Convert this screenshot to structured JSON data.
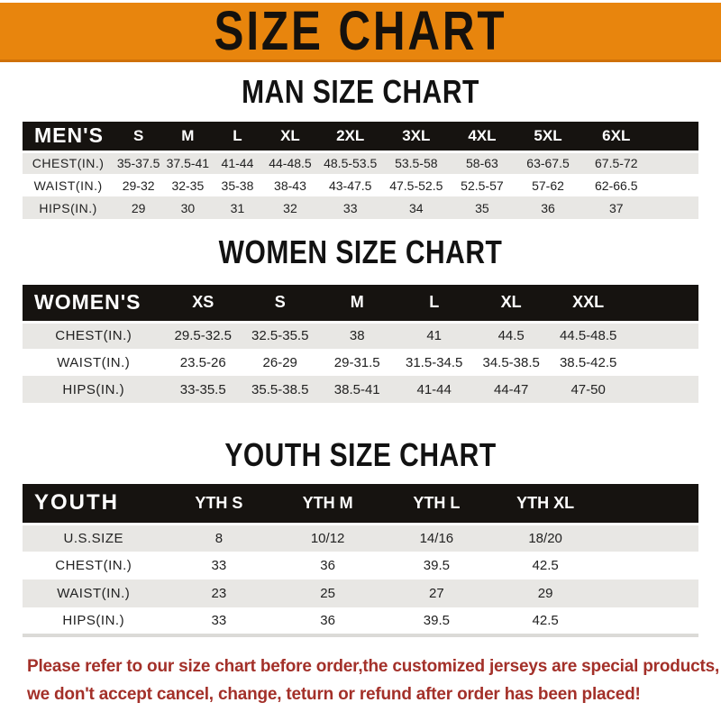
{
  "banner": {
    "title": "SIZE CHART",
    "bg_color": "#E8850D",
    "text_color": "#15110d"
  },
  "sections": [
    {
      "heading": "MAN SIZE CHART",
      "header_label": "MEN'S",
      "columns": [
        "S",
        "M",
        "L",
        "XL",
        "2XL",
        "3XL",
        "4XL",
        "5XL",
        "6XL"
      ],
      "rows": [
        {
          "label": "CHEST(IN.)",
          "values": [
            "35-37.5",
            "37.5-41",
            "41-44",
            "44-48.5",
            "48.5-53.5",
            "53.5-58",
            "58-63",
            "63-67.5",
            "67.5-72"
          ]
        },
        {
          "label": "WAIST(IN.)",
          "values": [
            "29-32",
            "32-35",
            "35-38",
            "38-43",
            "43-47.5",
            "47.5-52.5",
            "52.5-57",
            "57-62",
            "62-66.5"
          ]
        },
        {
          "label": "HIPS(IN.)",
          "values": [
            "29",
            "30",
            "31",
            "32",
            "33",
            "34",
            "35",
            "36",
            "37"
          ]
        }
      ]
    },
    {
      "heading": "WOMEN SIZE CHART",
      "header_label": "WOMEN'S",
      "columns": [
        "XS",
        "S",
        "M",
        "L",
        "XL",
        "XXL"
      ],
      "rows": [
        {
          "label": "CHEST(IN.)",
          "values": [
            "29.5-32.5",
            "32.5-35.5",
            "38",
            "41",
            "44.5",
            "44.5-48.5"
          ]
        },
        {
          "label": "WAIST(IN.)",
          "values": [
            "23.5-26",
            "26-29",
            "29-31.5",
            "31.5-34.5",
            "34.5-38.5",
            "38.5-42.5"
          ]
        },
        {
          "label": "HIPS(IN.)",
          "values": [
            "33-35.5",
            "35.5-38.5",
            "38.5-41",
            "41-44",
            "44-47",
            "47-50"
          ]
        }
      ]
    },
    {
      "heading": "YOUTH SIZE CHART",
      "header_label": "YOUTH",
      "columns": [
        "YTH S",
        "YTH M",
        "YTH L",
        "YTH XL"
      ],
      "rows": [
        {
          "label": "U.S.SIZE",
          "values": [
            "8",
            "10/12",
            "14/16",
            "18/20"
          ]
        },
        {
          "label": "CHEST(IN.)",
          "values": [
            "33",
            "36",
            "39.5",
            "42.5"
          ]
        },
        {
          "label": "WAIST(IN.)",
          "values": [
            "23",
            "25",
            "27",
            "29"
          ]
        },
        {
          "label": "HIPS(IN.)",
          "values": [
            "33",
            "36",
            "39.5",
            "42.5"
          ]
        }
      ]
    }
  ],
  "footer": {
    "line1": "Please refer to our size chart before order,the customized jerseys are special products,",
    "line2": "we don't accept cancel, change, teturn or refund after order has been placed!",
    "text_color": "#A33029"
  },
  "colors": {
    "banner_orange": "#E8850D",
    "header_bar_black": "#161310",
    "row_gray": "#E8E7E4",
    "note_red": "#A33029"
  }
}
